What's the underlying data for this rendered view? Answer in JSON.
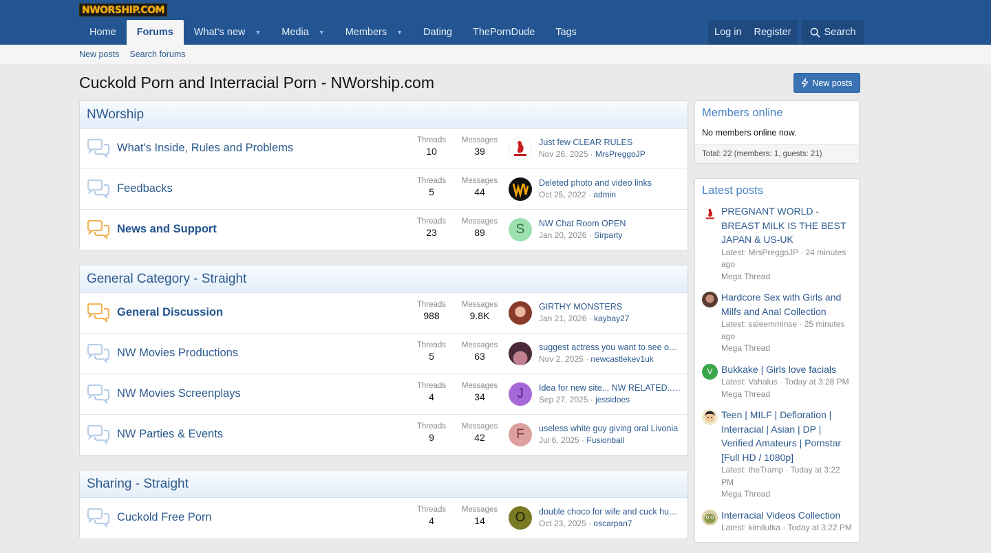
{
  "brand": {
    "logo": "NWORSHIP.COM"
  },
  "nav": {
    "tabs": [
      {
        "label": "Home"
      },
      {
        "label": "Forums"
      },
      {
        "label": "What's new"
      },
      {
        "label": "Media"
      },
      {
        "label": "Members"
      },
      {
        "label": "Dating"
      },
      {
        "label": "ThePornDude"
      },
      {
        "label": "Tags"
      }
    ],
    "login": "Log in",
    "register": "Register",
    "search": "Search"
  },
  "subnav": {
    "new_posts": "New posts",
    "search_forums": "Search forums"
  },
  "page": {
    "title": "Cuckold Porn and Interracial Porn - NWorship.com",
    "new_posts_button": "New posts"
  },
  "labels": {
    "threads": "Threads",
    "messages": "Messages"
  },
  "categories": [
    {
      "title": "NWorship",
      "nodes": [
        {
          "title": "What's Inside, Rules and Problems",
          "threads": "10",
          "messages": "39",
          "latest_title": "Just few CLEAR RULES",
          "latest_date": "Nov 26, 2025",
          "latest_user": "MrsPreggoJP",
          "avatar": ""
        },
        {
          "title": "Feedbacks",
          "threads": "5",
          "messages": "44",
          "latest_title": "Deleted photo and video links",
          "latest_date": "Oct 25, 2022",
          "latest_user": "admin",
          "avatar": ""
        },
        {
          "title": "News and Support",
          "threads": "23",
          "messages": "89",
          "latest_title": "NW Chat Room OPEN",
          "latest_date": "Jan 20, 2026",
          "latest_user": "Sirparty",
          "avatar": "S"
        }
      ]
    },
    {
      "title": "General Category - Straight",
      "nodes": [
        {
          "title": "General Discussion",
          "threads": "988",
          "messages": "9.8K",
          "latest_title": "GIRTHY MONSTERS",
          "latest_date": "Jan 21, 2026",
          "latest_user": "kaybay27",
          "avatar": ""
        },
        {
          "title": "NW Movies Productions",
          "threads": "5",
          "messages": "63",
          "latest_title": "suggest actress you want to see on NW Movies",
          "latest_date": "Nov 2, 2025",
          "latest_user": "newcastlekev1uk",
          "avatar": ""
        },
        {
          "title": "NW Movies Screenplays",
          "threads": "4",
          "messages": "34",
          "latest_title": "Idea for new site... NW RELATED.......",
          "latest_date": "Sep 27, 2025",
          "latest_user": "jessidoes",
          "avatar": "J"
        },
        {
          "title": "NW Parties & Events",
          "threads": "9",
          "messages": "42",
          "latest_title": "useless white guy giving oral Livonia",
          "latest_date": "Jul 6, 2025",
          "latest_user": "Fusionball",
          "avatar": "F"
        }
      ]
    },
    {
      "title": "Sharing - Straight",
      "nodes": [
        {
          "title": "Cuckold Free Porn",
          "threads": "4",
          "messages": "14",
          "latest_title": "double choco for wife and cuck husband",
          "latest_date": "Oct 23, 2025",
          "latest_user": "oscarpan7",
          "avatar": "O"
        }
      ]
    }
  ],
  "sidebar": {
    "members_online": {
      "title": "Members online",
      "body": "No members online now.",
      "footer": "Total: 22 (members: 1, guests: 21)"
    },
    "latest_posts": {
      "title": "Latest posts",
      "items": [
        {
          "title": "PREGNANT WORLD - BREAST MILK IS THE BEST JAPAN & US-UK",
          "meta": "Latest: MrsPreggoJP · 24 minutes ago",
          "forum": "Mega Thread",
          "avatar": ""
        },
        {
          "title": "Hardcore Sex with Girls and Milfs and Anal Collection",
          "meta": "Latest: saleemminse · 25 minutes ago",
          "forum": "Mega Thread",
          "avatar": ""
        },
        {
          "title": "Bukkake | Girls love facials",
          "meta": "Latest: Vahalus · Today at 3:28 PM",
          "forum": "Mega Thread",
          "avatar": "V"
        },
        {
          "title": "Teen | MILF | Defloration | Interracial | Asian | DP | Verified Amateurs | Pornstar [Full HD / 1080p]",
          "meta": "Latest: theTramp · Today at 3:22 PM",
          "forum": "Mega Thread",
          "avatar": ""
        },
        {
          "title": "Interracial Videos Collection",
          "meta": "Latest: kimilutka · Today at 3:22 PM",
          "forum": "",
          "avatar": ""
        }
      ]
    }
  },
  "colors": {
    "header": "#235592",
    "link": "#2c5a8f",
    "unread_icon": "#f0b45a",
    "read_icon": "#b8cfe8"
  }
}
